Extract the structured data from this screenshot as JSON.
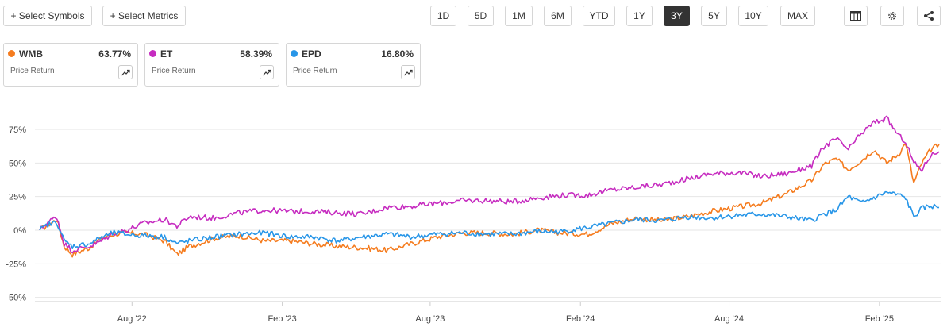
{
  "toolbar": {
    "select_symbols": "+ Select Symbols",
    "select_metrics": "+ Select Metrics",
    "periods": [
      "1D",
      "5D",
      "1M",
      "6M",
      "YTD",
      "1Y",
      "3Y",
      "5Y",
      "10Y",
      "MAX"
    ],
    "active_period": "3Y"
  },
  "cards": [
    {
      "symbol": "WMB",
      "value": "63.77%",
      "label": "Price Return",
      "color": "#F57C1F"
    },
    {
      "symbol": "ET",
      "value": "58.39%",
      "label": "Price Return",
      "color": "#C62CC0"
    },
    {
      "symbol": "EPD",
      "value": "16.80%",
      "label": "Price Return",
      "color": "#2896E8"
    }
  ],
  "chart_data": {
    "type": "line",
    "x_tick_labels": [
      "Aug '22",
      "Feb '23",
      "Aug '23",
      "Feb '24",
      "Aug '24",
      "Feb '25"
    ],
    "y_tick_labels": [
      "75%",
      "50%",
      "25%",
      "0%",
      "-25%",
      "-50%"
    ],
    "ylim": [
      -50,
      90
    ],
    "yticks": [
      75,
      50,
      25,
      0,
      -25,
      -50
    ],
    "grid": true,
    "x_domain": [
      "2022-04-10",
      "2025-04-15"
    ],
    "series": [
      {
        "name": "WMB",
        "color": "#F57C1F",
        "x": [
          "2022-04-10",
          "2022-04-20",
          "2022-05-01",
          "2022-05-10",
          "2022-05-20",
          "2022-06-10",
          "2022-06-25",
          "2022-07-10",
          "2022-07-25",
          "2022-08-15",
          "2022-09-10",
          "2022-09-25",
          "2022-10-10",
          "2022-11-10",
          "2022-12-10",
          "2023-01-10",
          "2023-02-10",
          "2023-03-10",
          "2023-04-10",
          "2023-05-10",
          "2023-06-10",
          "2023-07-10",
          "2023-08-10",
          "2023-09-10",
          "2023-10-10",
          "2023-11-10",
          "2023-12-10",
          "2024-01-10",
          "2024-02-10",
          "2024-03-10",
          "2024-04-10",
          "2024-05-10",
          "2024-06-10",
          "2024-07-10",
          "2024-08-10",
          "2024-09-10",
          "2024-10-10",
          "2024-11-10",
          "2024-11-25",
          "2024-12-10",
          "2024-12-25",
          "2025-01-10",
          "2025-01-25",
          "2025-02-10",
          "2025-02-25",
          "2025-03-05",
          "2025-03-15",
          "2025-03-25",
          "2025-04-05",
          "2025-04-15"
        ],
        "values": [
          0,
          4,
          8,
          -12,
          -18,
          -13,
          -6,
          -3,
          -2,
          -3,
          -8,
          -18,
          -12,
          -6,
          -4,
          -8,
          -8,
          -10,
          -12,
          -13,
          -15,
          -10,
          -5,
          -2,
          -2,
          -3,
          0,
          -2,
          -3,
          5,
          9,
          7,
          10,
          14,
          17,
          20,
          27,
          37,
          49,
          53,
          45,
          52,
          60,
          50,
          57,
          65,
          35,
          50,
          60,
          63.77
        ]
      },
      {
        "name": "ET",
        "color": "#C62CC0",
        "x": [
          "2022-04-10",
          "2022-04-20",
          "2022-05-01",
          "2022-05-10",
          "2022-05-20",
          "2022-06-10",
          "2022-06-25",
          "2022-07-10",
          "2022-07-25",
          "2022-08-15",
          "2022-09-10",
          "2022-09-25",
          "2022-10-10",
          "2022-11-10",
          "2022-12-10",
          "2023-01-10",
          "2023-02-10",
          "2023-03-10",
          "2023-04-10",
          "2023-05-10",
          "2023-06-10",
          "2023-07-10",
          "2023-08-10",
          "2023-09-10",
          "2023-10-10",
          "2023-11-10",
          "2023-12-10",
          "2024-01-10",
          "2024-02-10",
          "2024-03-10",
          "2024-04-10",
          "2024-05-10",
          "2024-06-10",
          "2024-07-10",
          "2024-08-10",
          "2024-09-10",
          "2024-10-10",
          "2024-11-10",
          "2024-11-25",
          "2024-12-10",
          "2024-12-25",
          "2025-01-10",
          "2025-01-25",
          "2025-02-10",
          "2025-02-25",
          "2025-03-05",
          "2025-03-15",
          "2025-03-25",
          "2025-04-05",
          "2025-04-15"
        ],
        "values": [
          0,
          6,
          10,
          -10,
          -15,
          -12,
          -8,
          -2,
          0,
          5,
          8,
          3,
          10,
          9,
          13,
          15,
          14,
          14,
          13,
          12,
          17,
          18,
          20,
          22,
          22,
          21,
          24,
          26,
          26,
          30,
          32,
          34,
          38,
          42,
          43,
          40,
          42,
          48,
          62,
          68,
          60,
          72,
          80,
          83,
          70,
          66,
          50,
          45,
          56,
          58.39
        ]
      },
      {
        "name": "EPD",
        "color": "#2896E8",
        "x": [
          "2022-04-10",
          "2022-04-20",
          "2022-05-01",
          "2022-05-10",
          "2022-05-20",
          "2022-06-10",
          "2022-06-25",
          "2022-07-10",
          "2022-07-25",
          "2022-08-15",
          "2022-09-10",
          "2022-09-25",
          "2022-10-10",
          "2022-11-10",
          "2022-12-10",
          "2023-01-10",
          "2023-02-10",
          "2023-03-10",
          "2023-04-10",
          "2023-05-10",
          "2023-06-10",
          "2023-07-10",
          "2023-08-10",
          "2023-09-10",
          "2023-10-10",
          "2023-11-10",
          "2023-12-10",
          "2024-01-10",
          "2024-02-10",
          "2024-03-10",
          "2024-04-10",
          "2024-05-10",
          "2024-06-10",
          "2024-07-10",
          "2024-08-10",
          "2024-09-10",
          "2024-10-10",
          "2024-11-10",
          "2024-11-25",
          "2024-12-10",
          "2024-12-25",
          "2025-01-10",
          "2025-01-25",
          "2025-02-10",
          "2025-02-25",
          "2025-03-05",
          "2025-03-15",
          "2025-03-25",
          "2025-04-05",
          "2025-04-15"
        ],
        "values": [
          0,
          4,
          6,
          -8,
          -12,
          -10,
          -5,
          -2,
          -3,
          -4,
          -5,
          -10,
          -8,
          -5,
          -3,
          -2,
          -5,
          -5,
          -8,
          -5,
          -3,
          -5,
          -3,
          -2,
          -3,
          -3,
          -1,
          -1,
          2,
          5,
          8,
          7,
          10,
          9,
          11,
          12,
          10,
          7,
          12,
          15,
          25,
          20,
          24,
          28,
          26,
          24,
          10,
          16,
          18,
          16.8
        ]
      }
    ]
  }
}
